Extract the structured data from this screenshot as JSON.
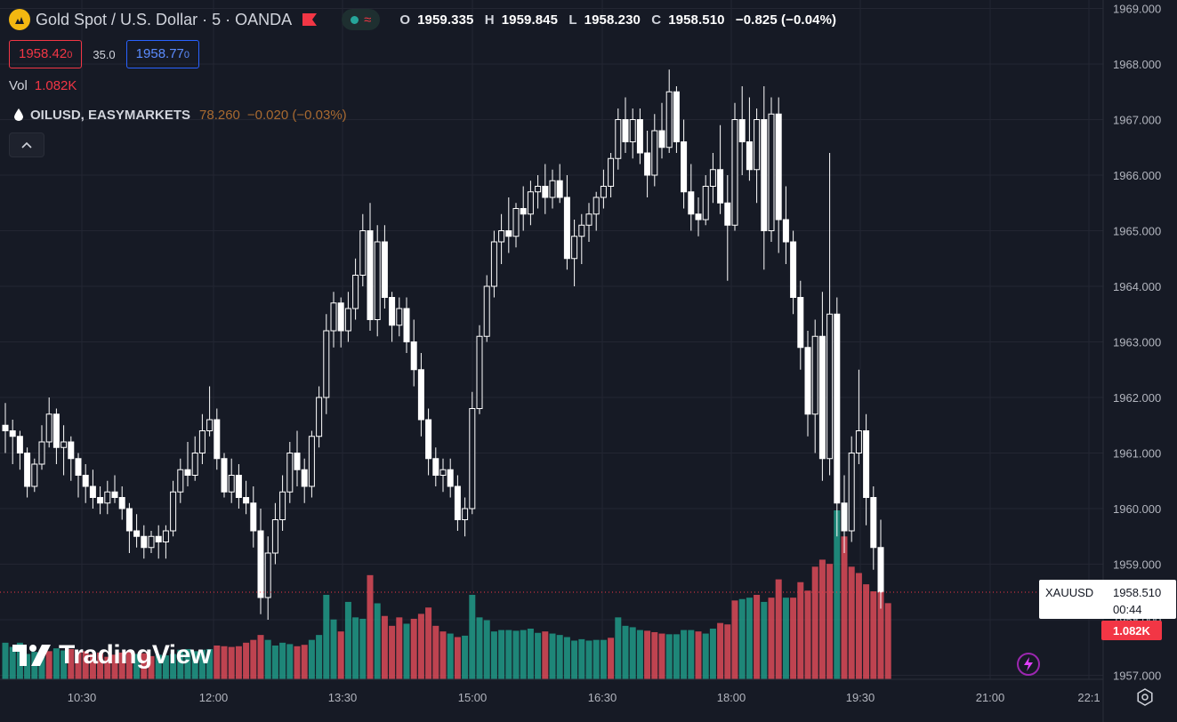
{
  "header": {
    "symbol_title": "Gold Spot / U.S. Dollar · 5 · OANDA",
    "icon": "gold-coin-icon",
    "flag_icon": "flag-icon",
    "indicator_icons": [
      "dot-icon",
      "wave-icon"
    ],
    "ohlc": {
      "o_label": "O",
      "o_value": "1959.335",
      "h_label": "H",
      "h_value": "1959.845",
      "l_label": "L",
      "l_value": "1958.230",
      "c_label": "C",
      "c_value": "1958.510",
      "change": "−0.825 (−0.04%)"
    },
    "bid_main": "1958.42",
    "bid_small": "0",
    "spread": "35.0",
    "ask_main": "1958.77",
    "ask_small": "0",
    "volume_label": "Vol",
    "volume_value": "1.082K",
    "compare": {
      "name": "OILUSD, EASYMARKETS",
      "value": "78.260",
      "change": "−0.020 (−0.03%)"
    },
    "collapse_icon": "chevron-up-icon"
  },
  "watermark": "TradingView",
  "price_tag": {
    "symbol": "XAUUSD",
    "price": "1958.510",
    "countdown": "00:44",
    "volume": "1.082K"
  },
  "colors": {
    "background": "#161a25",
    "grid": "#232632",
    "up": "#ffffff",
    "down": "#ffffff",
    "vol_up": "#22ab94",
    "vol_down": "#f7525f",
    "text": "#d1d4dc",
    "price_line": "#f23645"
  },
  "chart_data": {
    "type": "candlestick",
    "interval": "5",
    "y_axis": {
      "range": [
        1957.0,
        1969.0
      ],
      "tick_labels": [
        "1957.000",
        "1958.000",
        "1959.000",
        "1960.000",
        "1961.000",
        "1962.000",
        "1963.000",
        "1964.000",
        "1965.000",
        "1966.000",
        "1967.000",
        "1968.000",
        "1969.000"
      ]
    },
    "x_axis": {
      "tick_labels": [
        "10:30",
        "12:00",
        "13:30",
        "15:00",
        "16:30",
        "18:00",
        "19:30",
        "21:00",
        "22:1"
      ]
    },
    "grid": true,
    "candles": [
      [
        1961.5,
        1961.9,
        1961.0,
        1961.4
      ],
      [
        1961.4,
        1961.6,
        1960.8,
        1961.3
      ],
      [
        1961.3,
        1961.4,
        1960.7,
        1961.0
      ],
      [
        1961.0,
        1961.1,
        1960.2,
        1960.4
      ],
      [
        1960.4,
        1960.9,
        1960.3,
        1960.8
      ],
      [
        1960.8,
        1961.5,
        1960.7,
        1961.2
      ],
      [
        1961.2,
        1962.0,
        1961.1,
        1961.7
      ],
      [
        1961.7,
        1961.8,
        1960.8,
        1961.1
      ],
      [
        1961.1,
        1961.5,
        1960.6,
        1961.2
      ],
      [
        1961.2,
        1961.3,
        1960.5,
        1960.9
      ],
      [
        1960.9,
        1961.0,
        1960.2,
        1960.6
      ],
      [
        1960.6,
        1960.8,
        1960.1,
        1960.4
      ],
      [
        1960.4,
        1960.7,
        1960.0,
        1960.2
      ],
      [
        1960.2,
        1960.4,
        1959.9,
        1960.1
      ],
      [
        1960.1,
        1960.5,
        1959.9,
        1960.3
      ],
      [
        1960.3,
        1960.6,
        1960.1,
        1960.2
      ],
      [
        1960.2,
        1960.4,
        1959.8,
        1960.0
      ],
      [
        1960.0,
        1960.1,
        1959.2,
        1959.6
      ],
      [
        1959.6,
        1959.9,
        1959.3,
        1959.5
      ],
      [
        1959.5,
        1959.7,
        1959.1,
        1959.3
      ],
      [
        1959.3,
        1959.6,
        1959.2,
        1959.5
      ],
      [
        1959.5,
        1959.7,
        1959.1,
        1959.4
      ],
      [
        1959.4,
        1959.7,
        1959.1,
        1959.6
      ],
      [
        1959.6,
        1960.5,
        1959.5,
        1960.3
      ],
      [
        1960.3,
        1960.9,
        1960.1,
        1960.7
      ],
      [
        1960.7,
        1961.2,
        1960.4,
        1960.6
      ],
      [
        1960.6,
        1961.3,
        1960.5,
        1961.0
      ],
      [
        1961.0,
        1961.7,
        1960.8,
        1961.4
      ],
      [
        1961.4,
        1962.2,
        1961.3,
        1961.6
      ],
      [
        1961.6,
        1961.8,
        1960.7,
        1960.9
      ],
      [
        1960.9,
        1961.0,
        1960.2,
        1960.3
      ],
      [
        1960.3,
        1960.9,
        1960.1,
        1960.6
      ],
      [
        1960.6,
        1960.8,
        1960.0,
        1960.2
      ],
      [
        1960.2,
        1960.5,
        1959.9,
        1960.1
      ],
      [
        1960.1,
        1960.4,
        1959.3,
        1959.6
      ],
      [
        1959.6,
        1960.0,
        1958.1,
        1958.4
      ],
      [
        1958.4,
        1959.5,
        1958.0,
        1959.2
      ],
      [
        1959.2,
        1960.1,
        1959.0,
        1959.8
      ],
      [
        1959.8,
        1960.6,
        1959.6,
        1960.3
      ],
      [
        1960.3,
        1961.2,
        1960.1,
        1961.0
      ],
      [
        1961.0,
        1961.4,
        1960.4,
        1960.7
      ],
      [
        1960.7,
        1960.9,
        1960.1,
        1960.4
      ],
      [
        1960.4,
        1961.4,
        1960.2,
        1961.3
      ],
      [
        1961.3,
        1962.2,
        1961.1,
        1962.0
      ],
      [
        1962.0,
        1963.5,
        1961.7,
        1963.2
      ],
      [
        1963.2,
        1963.9,
        1962.9,
        1963.7
      ],
      [
        1963.7,
        1963.8,
        1962.9,
        1963.2
      ],
      [
        1963.2,
        1963.9,
        1963.0,
        1963.6
      ],
      [
        1963.6,
        1964.5,
        1963.4,
        1964.2
      ],
      [
        1964.2,
        1965.3,
        1964.0,
        1965.0
      ],
      [
        1965.0,
        1965.5,
        1963.2,
        1963.4
      ],
      [
        1963.4,
        1965.1,
        1963.1,
        1964.8
      ],
      [
        1964.8,
        1965.1,
        1963.6,
        1963.8
      ],
      [
        1963.8,
        1963.9,
        1963.0,
        1963.3
      ],
      [
        1963.3,
        1963.8,
        1963.1,
        1963.6
      ],
      [
        1963.6,
        1963.8,
        1962.8,
        1963.0
      ],
      [
        1963.0,
        1963.4,
        1962.2,
        1962.5
      ],
      [
        1962.5,
        1962.8,
        1961.3,
        1961.6
      ],
      [
        1961.6,
        1961.8,
        1960.6,
        1960.9
      ],
      [
        1960.9,
        1961.1,
        1960.4,
        1960.6
      ],
      [
        1960.6,
        1960.9,
        1960.3,
        1960.7
      ],
      [
        1960.7,
        1960.9,
        1960.2,
        1960.4
      ],
      [
        1960.4,
        1960.6,
        1959.6,
        1959.8
      ],
      [
        1959.8,
        1960.2,
        1959.5,
        1960.0
      ],
      [
        1960.0,
        1962.1,
        1959.9,
        1961.8
      ],
      [
        1961.8,
        1963.3,
        1961.7,
        1963.1
      ],
      [
        1963.1,
        1964.2,
        1963.0,
        1964.0
      ],
      [
        1964.0,
        1965.0,
        1963.8,
        1964.8
      ],
      [
        1964.8,
        1965.3,
        1964.4,
        1965.0
      ],
      [
        1965.0,
        1965.6,
        1964.6,
        1964.9
      ],
      [
        1964.9,
        1965.5,
        1964.7,
        1965.4
      ],
      [
        1965.4,
        1965.8,
        1965.0,
        1965.3
      ],
      [
        1965.3,
        1965.9,
        1965.1,
        1965.7
      ],
      [
        1965.7,
        1966.0,
        1965.4,
        1965.8
      ],
      [
        1965.8,
        1966.2,
        1965.3,
        1965.6
      ],
      [
        1965.6,
        1966.1,
        1965.4,
        1965.9
      ],
      [
        1965.9,
        1966.2,
        1965.5,
        1965.6
      ],
      [
        1965.6,
        1966.0,
        1964.3,
        1964.5
      ],
      [
        1964.5,
        1965.2,
        1964.0,
        1964.9
      ],
      [
        1964.9,
        1965.3,
        1964.4,
        1965.1
      ],
      [
        1965.1,
        1965.5,
        1964.8,
        1965.3
      ],
      [
        1965.3,
        1965.7,
        1965.0,
        1965.6
      ],
      [
        1965.6,
        1966.1,
        1965.4,
        1965.8
      ],
      [
        1965.8,
        1966.4,
        1965.6,
        1966.3
      ],
      [
        1966.3,
        1967.2,
        1966.1,
        1967.0
      ],
      [
        1967.0,
        1967.4,
        1966.4,
        1966.6
      ],
      [
        1966.6,
        1967.2,
        1966.3,
        1967.0
      ],
      [
        1967.0,
        1967.2,
        1966.2,
        1966.4
      ],
      [
        1966.4,
        1966.8,
        1965.6,
        1966.0
      ],
      [
        1966.0,
        1967.1,
        1965.8,
        1966.8
      ],
      [
        1966.8,
        1967.3,
        1966.3,
        1966.5
      ],
      [
        1966.5,
        1967.9,
        1966.4,
        1967.5
      ],
      [
        1967.5,
        1967.6,
        1966.4,
        1966.6
      ],
      [
        1966.6,
        1967.0,
        1965.4,
        1965.7
      ],
      [
        1965.7,
        1966.2,
        1965.0,
        1965.3
      ],
      [
        1965.3,
        1965.6,
        1964.9,
        1965.2
      ],
      [
        1965.2,
        1966.0,
        1965.1,
        1965.8
      ],
      [
        1965.8,
        1966.4,
        1965.5,
        1966.1
      ],
      [
        1966.1,
        1966.9,
        1965.3,
        1965.5
      ],
      [
        1965.5,
        1966.0,
        1964.1,
        1965.1
      ],
      [
        1965.1,
        1967.3,
        1965.0,
        1967.0
      ],
      [
        1967.0,
        1967.6,
        1966.0,
        1966.6
      ],
      [
        1966.6,
        1967.4,
        1965.9,
        1966.1
      ],
      [
        1966.1,
        1967.2,
        1965.5,
        1967.0
      ],
      [
        1967.0,
        1967.6,
        1964.3,
        1965.0
      ],
      [
        1965.0,
        1967.4,
        1964.8,
        1967.1
      ],
      [
        1967.1,
        1967.4,
        1964.6,
        1965.2
      ],
      [
        1965.2,
        1965.8,
        1964.4,
        1964.8
      ],
      [
        1964.8,
        1965.0,
        1963.5,
        1963.8
      ],
      [
        1963.8,
        1964.1,
        1962.5,
        1962.9
      ],
      [
        1962.9,
        1963.2,
        1961.3,
        1961.7
      ],
      [
        1961.7,
        1963.4,
        1961.0,
        1963.1
      ],
      [
        1963.1,
        1963.9,
        1960.5,
        1960.9
      ],
      [
        1960.9,
        1966.4,
        1960.6,
        1963.5
      ],
      [
        1963.5,
        1963.8,
        1959.5,
        1960.1
      ],
      [
        1960.1,
        1960.6,
        1959.2,
        1959.6
      ],
      [
        1959.6,
        1961.3,
        1959.4,
        1961.0
      ],
      [
        1961.0,
        1962.5,
        1960.8,
        1961.4
      ],
      [
        1961.4,
        1961.7,
        1959.7,
        1960.2
      ],
      [
        1960.2,
        1960.4,
        1958.9,
        1959.3
      ],
      [
        1959.3,
        1959.8,
        1958.2,
        1958.5
      ]
    ],
    "volume": [
      [
        520,
        "up"
      ],
      [
        460,
        "up"
      ],
      [
        520,
        "up"
      ],
      [
        360,
        "up"
      ],
      [
        390,
        "up"
      ],
      [
        420,
        "up"
      ],
      [
        400,
        "down"
      ],
      [
        440,
        "up"
      ],
      [
        410,
        "up"
      ],
      [
        430,
        "down"
      ],
      [
        380,
        "down"
      ],
      [
        400,
        "down"
      ],
      [
        360,
        "down"
      ],
      [
        380,
        "down"
      ],
      [
        320,
        "down"
      ],
      [
        350,
        "down"
      ],
      [
        380,
        "down"
      ],
      [
        400,
        "down"
      ],
      [
        360,
        "up"
      ],
      [
        370,
        "down"
      ],
      [
        330,
        "down"
      ],
      [
        350,
        "up"
      ],
      [
        340,
        "up"
      ],
      [
        360,
        "up"
      ],
      [
        420,
        "up"
      ],
      [
        430,
        "up"
      ],
      [
        400,
        "up"
      ],
      [
        420,
        "up"
      ],
      [
        430,
        "up"
      ],
      [
        480,
        "down"
      ],
      [
        470,
        "down"
      ],
      [
        460,
        "down"
      ],
      [
        470,
        "down"
      ],
      [
        520,
        "down"
      ],
      [
        560,
        "down"
      ],
      [
        630,
        "down"
      ],
      [
        560,
        "up"
      ],
      [
        480,
        "up"
      ],
      [
        520,
        "up"
      ],
      [
        500,
        "up"
      ],
      [
        470,
        "down"
      ],
      [
        490,
        "down"
      ],
      [
        560,
        "up"
      ],
      [
        630,
        "up"
      ],
      [
        1200,
        "up"
      ],
      [
        850,
        "up"
      ],
      [
        680,
        "down"
      ],
      [
        1100,
        "up"
      ],
      [
        880,
        "up"
      ],
      [
        860,
        "up"
      ],
      [
        1480,
        "down"
      ],
      [
        1080,
        "up"
      ],
      [
        900,
        "down"
      ],
      [
        760,
        "down"
      ],
      [
        880,
        "down"
      ],
      [
        790,
        "up"
      ],
      [
        860,
        "down"
      ],
      [
        930,
        "down"
      ],
      [
        1020,
        "down"
      ],
      [
        760,
        "down"
      ],
      [
        680,
        "down"
      ],
      [
        650,
        "up"
      ],
      [
        600,
        "down"
      ],
      [
        620,
        "up"
      ],
      [
        1200,
        "up"
      ],
      [
        880,
        "up"
      ],
      [
        840,
        "up"
      ],
      [
        680,
        "up"
      ],
      [
        700,
        "up"
      ],
      [
        700,
        "up"
      ],
      [
        690,
        "up"
      ],
      [
        700,
        "up"
      ],
      [
        720,
        "up"
      ],
      [
        660,
        "up"
      ],
      [
        680,
        "down"
      ],
      [
        650,
        "up"
      ],
      [
        630,
        "up"
      ],
      [
        600,
        "up"
      ],
      [
        550,
        "up"
      ],
      [
        570,
        "up"
      ],
      [
        550,
        "up"
      ],
      [
        560,
        "up"
      ],
      [
        560,
        "up"
      ],
      [
        590,
        "down"
      ],
      [
        880,
        "up"
      ],
      [
        760,
        "up"
      ],
      [
        740,
        "up"
      ],
      [
        700,
        "up"
      ],
      [
        690,
        "down"
      ],
      [
        670,
        "down"
      ],
      [
        650,
        "down"
      ],
      [
        640,
        "up"
      ],
      [
        640,
        "up"
      ],
      [
        700,
        "up"
      ],
      [
        700,
        "up"
      ],
      [
        680,
        "down"
      ],
      [
        650,
        "up"
      ],
      [
        720,
        "up"
      ],
      [
        800,
        "down"
      ],
      [
        780,
        "down"
      ],
      [
        1120,
        "down"
      ],
      [
        1140,
        "up"
      ],
      [
        1160,
        "up"
      ],
      [
        1200,
        "down"
      ],
      [
        1100,
        "up"
      ],
      [
        1160,
        "down"
      ],
      [
        1420,
        "down"
      ],
      [
        1160,
        "up"
      ],
      [
        1160,
        "down"
      ],
      [
        1380,
        "down"
      ],
      [
        1260,
        "down"
      ],
      [
        1600,
        "down"
      ],
      [
        1700,
        "down"
      ],
      [
        1640,
        "down"
      ],
      [
        2400,
        "up"
      ],
      [
        2030,
        "down"
      ],
      [
        1600,
        "down"
      ],
      [
        1510,
        "down"
      ],
      [
        1350,
        "down"
      ],
      [
        1250,
        "down"
      ],
      [
        1350,
        "down"
      ],
      [
        1082,
        "down"
      ]
    ]
  }
}
